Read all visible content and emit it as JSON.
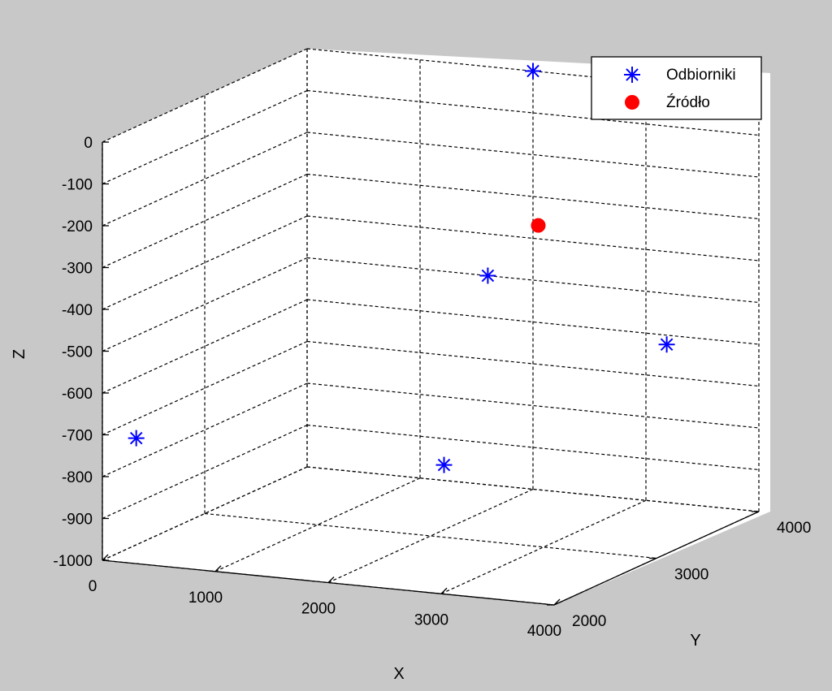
{
  "chart_data": {
    "type": "scatter3d",
    "xlabel": "X",
    "ylabel": "Y",
    "zlabel": "Z",
    "xlim": [
      0,
      4000
    ],
    "ylim": [
      2000,
      4000
    ],
    "zlim": [
      -1000,
      0
    ],
    "x_ticks": [
      0,
      1000,
      2000,
      3000,
      4000
    ],
    "y_ticks": [
      2000,
      3000,
      4000
    ],
    "z_ticks": [
      0,
      -100,
      -200,
      -300,
      -400,
      -500,
      -600,
      -700,
      -800,
      -900,
      -1000
    ],
    "grid": true,
    "legend": {
      "placement": "top-right"
    },
    "series": [
      {
        "name": "Odbiorniki",
        "marker": "asterisk",
        "color": "#0000ff",
        "points": [
          {
            "x": 300,
            "y": 2000,
            "z": -700
          },
          {
            "x": 2000,
            "y": 4000,
            "z": 0
          },
          {
            "x": 1600,
            "y": 4000,
            "z": -500
          },
          {
            "x": 2300,
            "y": 2800,
            "z": -800
          },
          {
            "x": 4000,
            "y": 3100,
            "z": -500
          }
        ]
      },
      {
        "name": "Źródło",
        "marker": "circle",
        "color": "#ff0000",
        "points": [
          {
            "x": 2500,
            "y": 3500,
            "z": -300
          }
        ]
      }
    ]
  }
}
